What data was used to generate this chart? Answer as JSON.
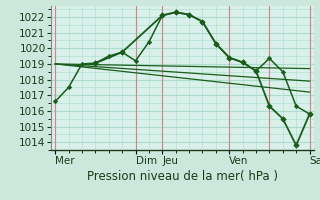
{
  "background_color": "#cce8dd",
  "grid_color": "#aaddcc",
  "plot_bg": "#daf0ea",
  "line_color": "#1a5c1a",
  "vline_color": "#cc8888",
  "ylabel": "Pression niveau de la mer( hPa )",
  "ylim": [
    1013.5,
    1022.7
  ],
  "yticks": [
    1014,
    1015,
    1016,
    1017,
    1018,
    1019,
    1020,
    1021,
    1022
  ],
  "xtick_labels": [
    "Mer",
    "Dim",
    "Jeu",
    "Ven",
    "Sam"
  ],
  "xtick_positions": [
    0,
    6,
    8,
    13,
    19
  ],
  "xlim": [
    -0.3,
    19.3
  ],
  "vlines_x": [
    0,
    6,
    8,
    13,
    16,
    19
  ],
  "series1_x": [
    0,
    1,
    2,
    3,
    4,
    5,
    6,
    7,
    8,
    9,
    10,
    11,
    12,
    13,
    14,
    15,
    16,
    17,
    18,
    19
  ],
  "series1_y": [
    1016.6,
    1017.5,
    1019.0,
    1019.05,
    1019.5,
    1019.75,
    1019.2,
    1020.4,
    1022.1,
    1022.3,
    1022.15,
    1021.7,
    1020.3,
    1019.4,
    1019.1,
    1018.55,
    1019.35,
    1018.5,
    1016.3,
    1015.8
  ],
  "trend1_x": [
    0,
    19
  ],
  "trend1_y": [
    1019.0,
    1018.7
  ],
  "trend2_x": [
    0,
    19
  ],
  "trend2_y": [
    1019.0,
    1017.9
  ],
  "trend3_x": [
    0,
    19
  ],
  "trend3_y": [
    1019.0,
    1017.2
  ],
  "series2_x": [
    3,
    5,
    8,
    9,
    10,
    11,
    12,
    13,
    14,
    15,
    16,
    17,
    18,
    19
  ],
  "series2_y": [
    1019.05,
    1019.75,
    1022.1,
    1022.3,
    1022.15,
    1021.7,
    1020.3,
    1019.4,
    1019.1,
    1018.55,
    1016.3,
    1015.5,
    1013.8,
    1015.8
  ],
  "fontsize_label": 8.5,
  "fontsize_tick": 7.5
}
